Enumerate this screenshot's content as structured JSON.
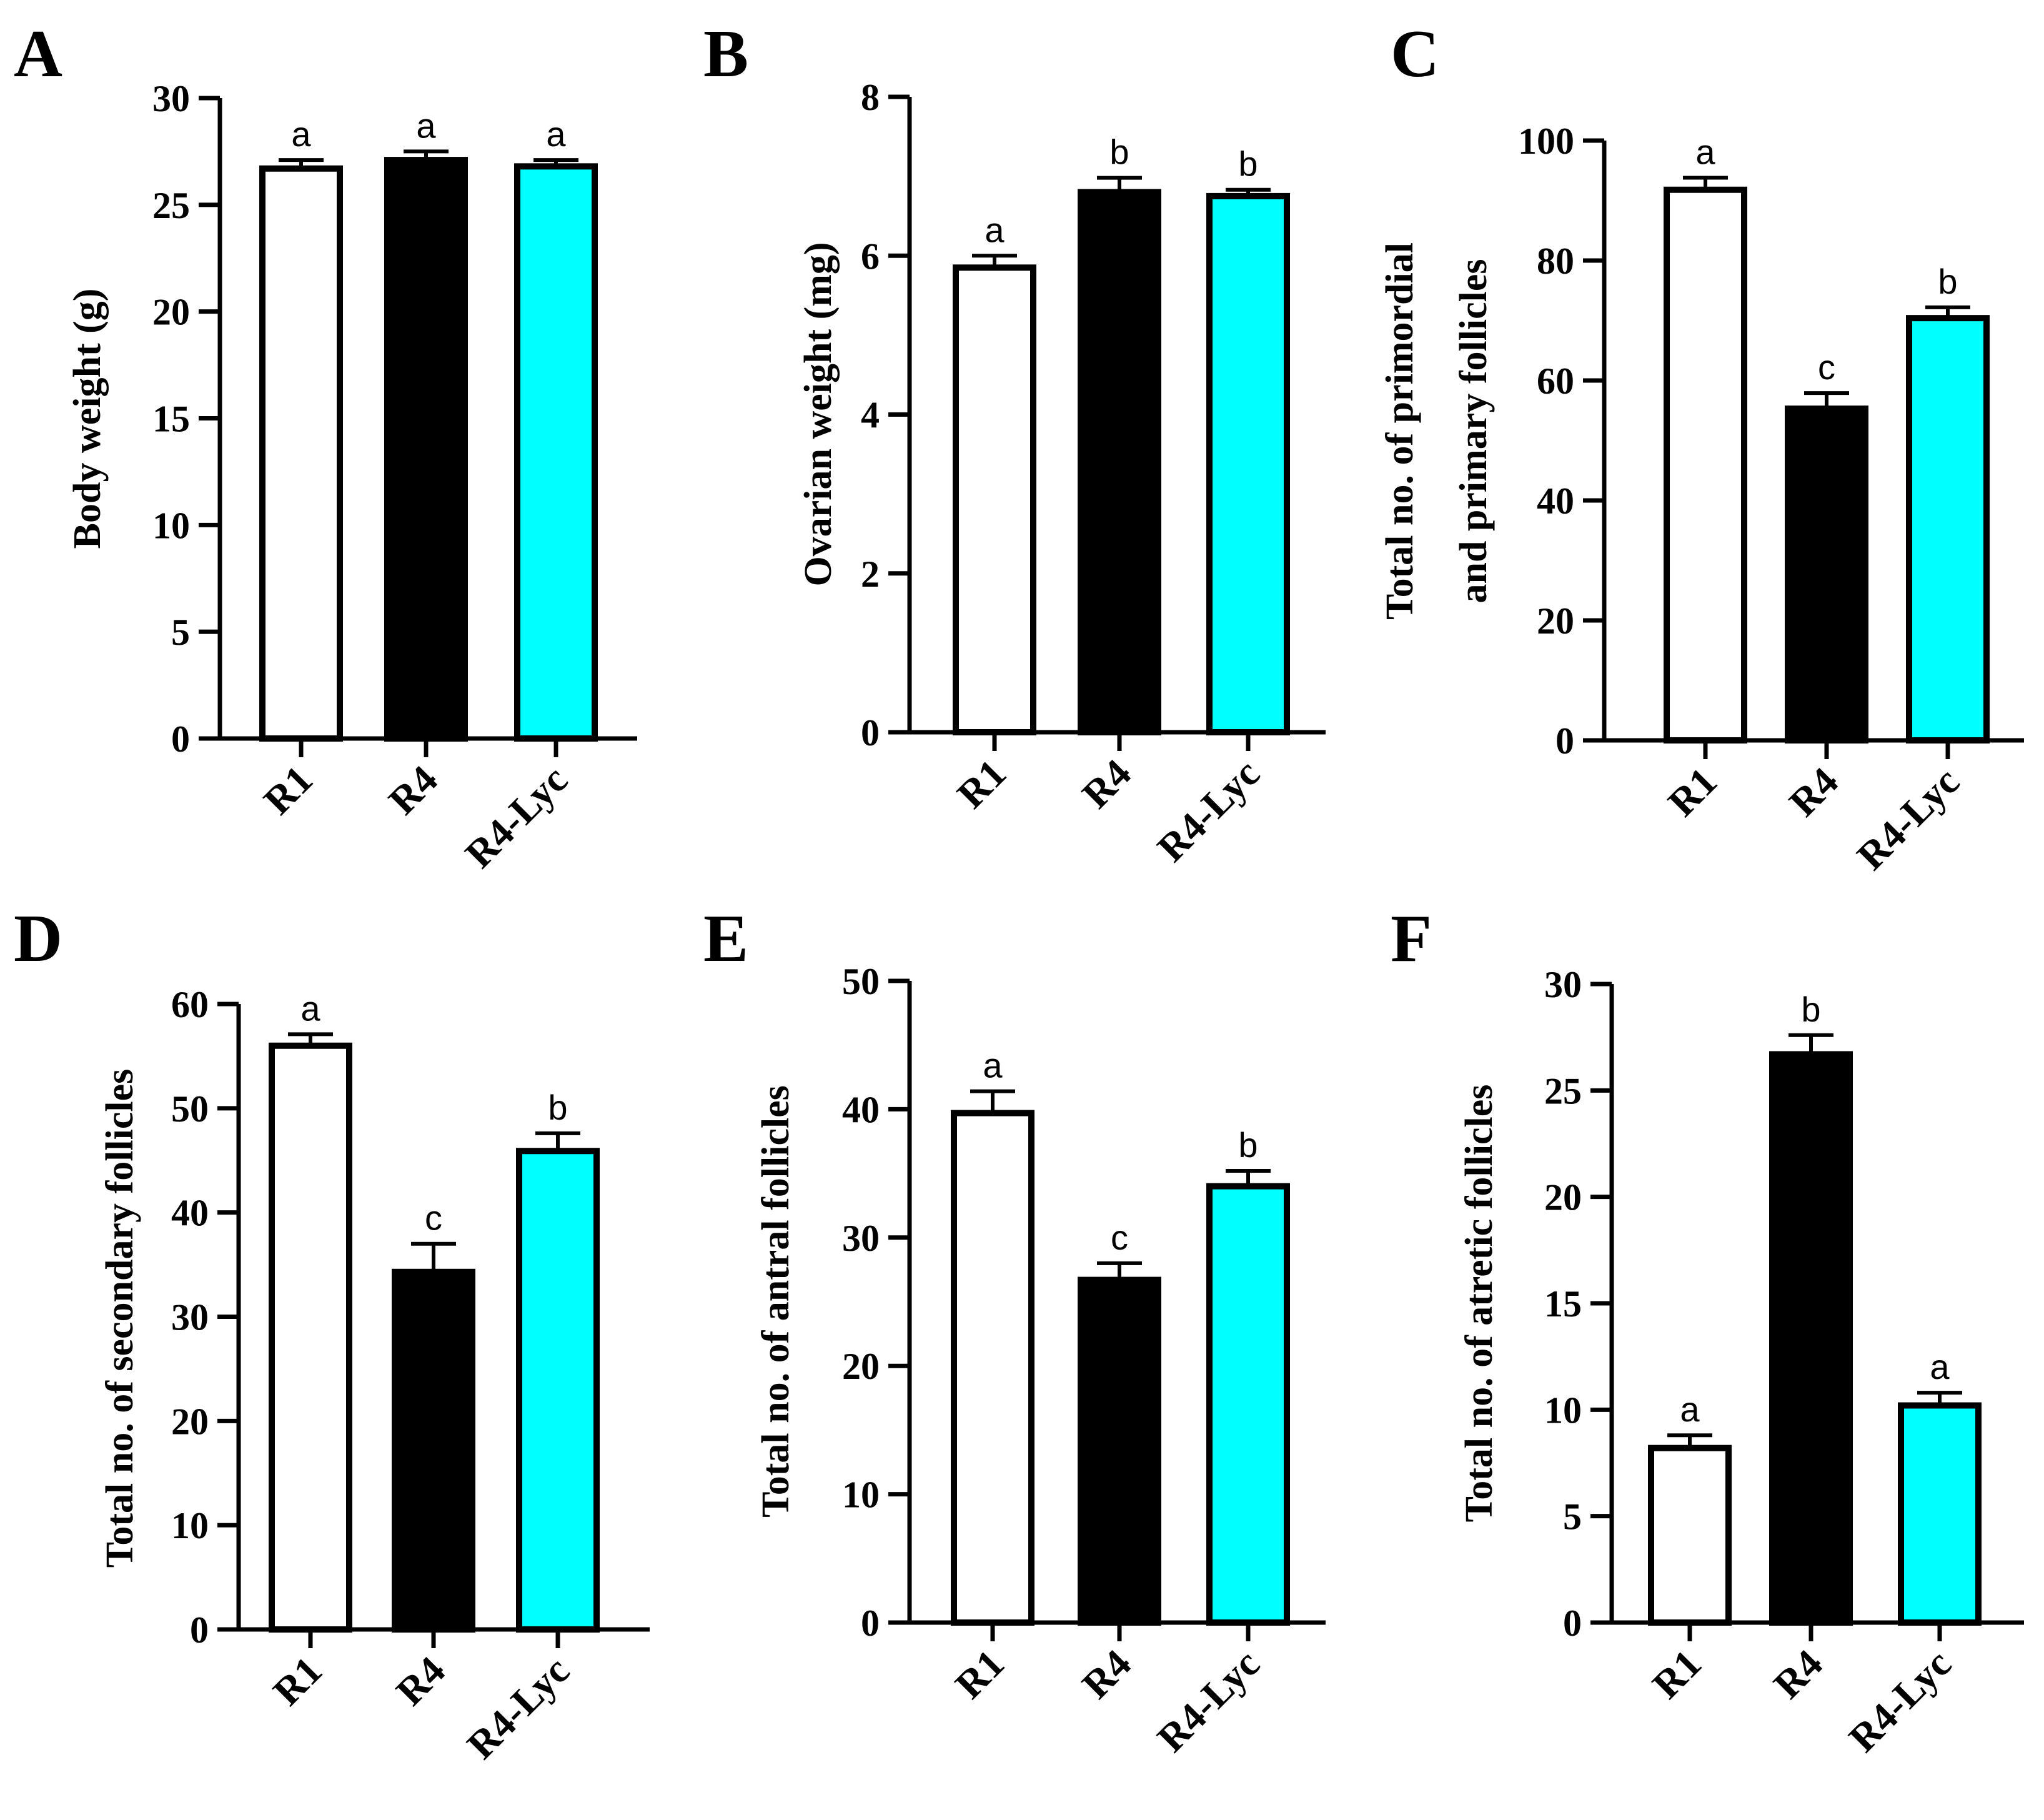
{
  "figure": {
    "colors": {
      "R1": "#ffffff",
      "R4": "#000000",
      "R4-Lyc": "#00ffff",
      "stroke": "#000000"
    },
    "categories": [
      "R1",
      "R4",
      "R4-Lyc"
    ]
  },
  "chart_data": [
    {
      "panel": "A",
      "type": "bar",
      "categories": [
        "R1",
        "R4",
        "R4-Lyc"
      ],
      "values": [
        26.7,
        27.1,
        26.8
      ],
      "errors": [
        0.4,
        0.4,
        0.3
      ],
      "significance": [
        "a",
        "a",
        "a"
      ],
      "ylabel": [
        "Body weight (g)"
      ],
      "ylim": [
        0,
        30
      ],
      "yticks": [
        0,
        5,
        10,
        15,
        20,
        25,
        30
      ]
    },
    {
      "panel": "B",
      "type": "bar",
      "categories": [
        "R1",
        "R4",
        "R4-Lyc"
      ],
      "values": [
        5.85,
        6.8,
        6.75
      ],
      "errors": [
        0.15,
        0.18,
        0.08
      ],
      "significance": [
        "a",
        "b",
        "b"
      ],
      "ylabel": [
        "Ovarian weight (mg)"
      ],
      "ylim": [
        0,
        8
      ],
      "yticks": [
        0,
        2,
        4,
        6,
        8
      ]
    },
    {
      "panel": "C",
      "type": "bar",
      "categories": [
        "R1",
        "R4",
        "R4-Lyc"
      ],
      "values": [
        91.8,
        55.3,
        70.4
      ],
      "errors": [
        2.0,
        2.6,
        1.8
      ],
      "significance": [
        "a",
        "c",
        "b"
      ],
      "ylabel": [
        "Total no. of primordial",
        "and primary follicles"
      ],
      "ylim": [
        0,
        100
      ],
      "yticks": [
        0,
        20,
        40,
        60,
        80,
        100
      ]
    },
    {
      "panel": "D",
      "type": "bar",
      "categories": [
        "R1",
        "R4",
        "R4-Lyc"
      ],
      "values": [
        56.0,
        34.3,
        45.9
      ],
      "errors": [
        1.1,
        2.7,
        1.7
      ],
      "significance": [
        "a",
        "c",
        "b"
      ],
      "ylabel": [
        "Total no. of secondary follicles"
      ],
      "ylim": [
        0,
        60
      ],
      "yticks": [
        0,
        10,
        20,
        30,
        40,
        50,
        60
      ]
    },
    {
      "panel": "E",
      "type": "bar",
      "categories": [
        "R1",
        "R4",
        "R4-Lyc"
      ],
      "values": [
        39.7,
        26.7,
        34.0
      ],
      "errors": [
        1.7,
        1.3,
        1.2
      ],
      "significance": [
        "a",
        "c",
        "b"
      ],
      "ylabel": [
        "Total no. of antral follicles"
      ],
      "ylim": [
        0,
        50
      ],
      "yticks": [
        0,
        10,
        20,
        30,
        40,
        50
      ]
    },
    {
      "panel": "F",
      "type": "bar",
      "categories": [
        "R1",
        "R4",
        "R4-Lyc"
      ],
      "values": [
        8.2,
        26.7,
        10.2
      ],
      "errors": [
        0.6,
        0.9,
        0.6
      ],
      "significance": [
        "a",
        "b",
        "a"
      ],
      "ylabel": [
        "Total no. of atretic follicles"
      ],
      "ylim": [
        0,
        30
      ],
      "yticks": [
        0,
        5,
        10,
        15,
        20,
        25,
        30
      ]
    }
  ]
}
